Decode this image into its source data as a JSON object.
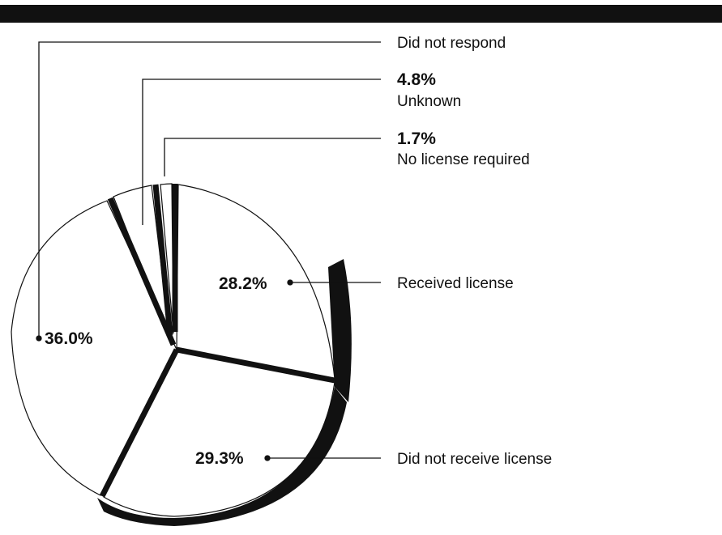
{
  "chart_data": {
    "type": "pie",
    "title": "",
    "categories": [
      "Received license",
      "Did not receive license",
      "Did not respond",
      "Unknown",
      "No license required"
    ],
    "values": [
      28.2,
      29.3,
      36.0,
      4.8,
      1.7
    ],
    "value_labels": [
      "28.2%",
      "29.3%",
      "36.0%",
      "4.8%",
      "1.7%"
    ],
    "legend": "callout labels",
    "colors": {
      "fill": "#ffffff",
      "stroke": "#111111",
      "shadow": "#111111",
      "top_bar": "#111111"
    }
  }
}
